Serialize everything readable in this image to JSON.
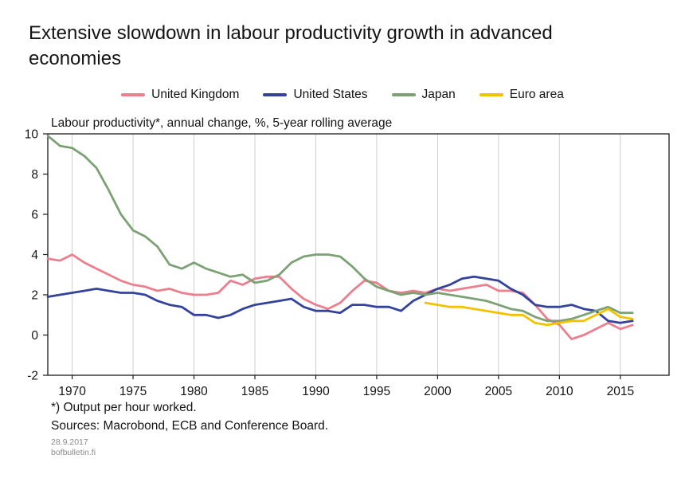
{
  "title": "Extensive slowdown in labour productivity growth in advanced economies",
  "subtitle": "Labour productivity*, annual change, %, 5-year rolling average",
  "footnotes": {
    "note": "*) Output per hour worked.",
    "sources": "Sources: Macrobond, ECB and Conference Board.",
    "date": "28.9.2017",
    "site": "bofbulletin.fi"
  },
  "chart_data": {
    "type": "line",
    "title": "Extensive slowdown in labour productivity growth in advanced economies",
    "subtitle": "Labour productivity*, annual change, %, 5-year rolling average",
    "xlabel": "",
    "ylabel": "",
    "ylim": [
      -2,
      10
    ],
    "yticks": [
      -2,
      0,
      2,
      4,
      6,
      8,
      10
    ],
    "xlim": [
      1968,
      2019
    ],
    "xticks": [
      1970,
      1975,
      1980,
      1985,
      1990,
      1995,
      2000,
      2005,
      2010,
      2015
    ],
    "grid": "vertical-only",
    "legend_position": "top-center",
    "grid_color": "#cfcfcf",
    "axis_color": "#1a1a1a",
    "series": [
      {
        "name": "United Kingdom",
        "color": "#ec7f8e",
        "start_year": 1968,
        "values": [
          3.8,
          3.7,
          4.0,
          3.6,
          3.3,
          3.0,
          2.7,
          2.5,
          2.4,
          2.2,
          2.3,
          2.1,
          2.0,
          2.0,
          2.1,
          2.7,
          2.5,
          2.8,
          2.9,
          2.9,
          2.3,
          1.8,
          1.5,
          1.3,
          1.6,
          2.2,
          2.7,
          2.6,
          2.2,
          2.1,
          2.2,
          2.1,
          2.3,
          2.2,
          2.3,
          2.4,
          2.5,
          2.2,
          2.2,
          2.1,
          1.5,
          0.8,
          0.5,
          -0.2,
          0.0,
          0.3,
          0.6,
          0.3,
          0.5
        ]
      },
      {
        "name": "United States",
        "color": "#33439c",
        "start_year": 1968,
        "values": [
          1.9,
          2.0,
          2.1,
          2.2,
          2.3,
          2.2,
          2.1,
          2.1,
          2.0,
          1.7,
          1.5,
          1.4,
          1.0,
          1.0,
          0.85,
          1.0,
          1.3,
          1.5,
          1.6,
          1.7,
          1.8,
          1.4,
          1.2,
          1.2,
          1.1,
          1.5,
          1.5,
          1.4,
          1.4,
          1.2,
          1.7,
          2.0,
          2.3,
          2.5,
          2.8,
          2.9,
          2.8,
          2.7,
          2.3,
          2.0,
          1.5,
          1.4,
          1.4,
          1.5,
          1.3,
          1.2,
          0.7,
          0.6,
          0.7
        ]
      },
      {
        "name": "Japan",
        "color": "#7ca175",
        "start_year": 1968,
        "values": [
          9.9,
          9.4,
          9.3,
          8.9,
          8.3,
          7.2,
          6.0,
          5.2,
          4.9,
          4.4,
          3.5,
          3.3,
          3.6,
          3.3,
          3.1,
          2.9,
          3.0,
          2.6,
          2.7,
          3.0,
          3.6,
          3.9,
          4.0,
          4.0,
          3.9,
          3.4,
          2.8,
          2.4,
          2.2,
          2.0,
          2.1,
          2.0,
          2.1,
          2.0,
          1.9,
          1.8,
          1.7,
          1.5,
          1.3,
          1.2,
          0.9,
          0.7,
          0.7,
          0.8,
          1.0,
          1.2,
          1.4,
          1.1,
          1.1
        ]
      },
      {
        "name": "Euro area",
        "color": "#f2c200",
        "start_year": 1999,
        "values": [
          1.6,
          1.5,
          1.4,
          1.4,
          1.3,
          1.2,
          1.1,
          1.0,
          1.0,
          0.6,
          0.5,
          0.6,
          0.7,
          0.7,
          1.0,
          1.3,
          0.9,
          0.8
        ]
      }
    ]
  }
}
